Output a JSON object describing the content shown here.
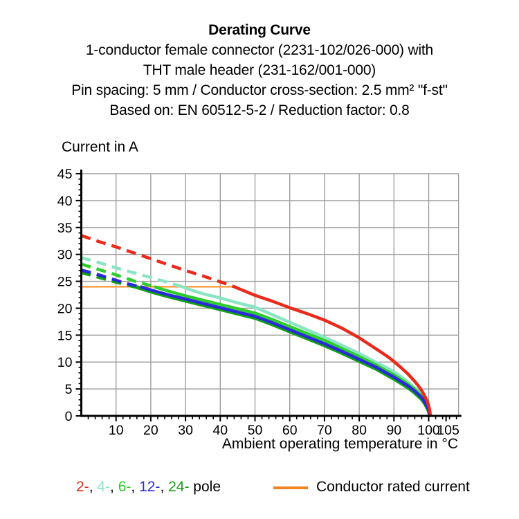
{
  "title": {
    "line1": "Derating Curve",
    "line2": "1-conductor female connector (2231-102/026-000) with",
    "line3": "THT male header (231-162/001-000)",
    "line4": "Pin spacing: 5 mm / Conductor cross-section: 2.5 mm² \"f-st\"",
    "line5": "Based on: EN 60512-5-2 / Reduction factor: 0.8"
  },
  "legend": {
    "poles": [
      {
        "label": "2-",
        "color": "#ea2a1a"
      },
      {
        "label": "4-",
        "color": "#8be4c4"
      },
      {
        "label": "6-",
        "color": "#2ccd2c"
      },
      {
        "label": "12-",
        "color": "#2b2ad8"
      },
      {
        "label": "24-",
        "color": "#15a115"
      }
    ],
    "separator": ", ",
    "suffix": " pole",
    "rated": {
      "label": "Conductor rated current",
      "swatch_color": "#f08421"
    }
  },
  "chart_data": {
    "type": "line",
    "title": "Derating Curve",
    "xlabel": "Ambient operating temperature in °C",
    "ylabel": "Current in A",
    "xlim": [
      0,
      108.6
    ],
    "ylim": [
      0,
      45
    ],
    "grid": true,
    "grid_color": "#9e9e9e",
    "axis_color": "#000000",
    "x_gridlines": [
      10,
      20,
      30,
      40,
      50,
      60,
      70,
      80,
      90,
      100
    ],
    "x_major_ticks": [
      10,
      20,
      30,
      40,
      50,
      60,
      70,
      80,
      90,
      100,
      105
    ],
    "x_minor_step": 2,
    "y_major_ticks": [
      0,
      5,
      10,
      15,
      20,
      25,
      30,
      35,
      40,
      45
    ],
    "y_minor_step": 1,
    "rated_current_line": {
      "y": 24,
      "x_start": 0,
      "x_end": 45,
      "color": "#ffa54d",
      "label": "Conductor rated current"
    },
    "series": [
      {
        "name": "4-pole",
        "color": "#8be4c4",
        "width": 4.5,
        "solid_from": 29,
        "points": [
          [
            0,
            29.4
          ],
          [
            5,
            28.5
          ],
          [
            10,
            27.5
          ],
          [
            15,
            26.6
          ],
          [
            20,
            25.7
          ],
          [
            25,
            24.8
          ],
          [
            29,
            24.0
          ],
          [
            32,
            23.3
          ],
          [
            35,
            22.7
          ],
          [
            40,
            21.9
          ],
          [
            45,
            21.0
          ],
          [
            50,
            20.2
          ],
          [
            55,
            18.8
          ],
          [
            60,
            17.4
          ],
          [
            65,
            16.0
          ],
          [
            70,
            14.6
          ],
          [
            75,
            13.1
          ],
          [
            80,
            11.6
          ],
          [
            85,
            9.9
          ],
          [
            88,
            8.9
          ],
          [
            90,
            8.2
          ],
          [
            92,
            7.3
          ],
          [
            94,
            6.3
          ],
          [
            96,
            5.2
          ],
          [
            97,
            4.6
          ],
          [
            98,
            3.9
          ],
          [
            99,
            2.9
          ],
          [
            99.5,
            2.2
          ],
          [
            100,
            1.4
          ],
          [
            100.3,
            0.7
          ],
          [
            100.5,
            0
          ]
        ]
      },
      {
        "name": "24-pole",
        "color": "#15a115",
        "width": 5.5,
        "solid_from": 15.5,
        "points": [
          [
            0,
            26.7
          ],
          [
            5,
            25.8
          ],
          [
            10,
            24.9
          ],
          [
            15.5,
            24.0
          ],
          [
            20,
            23.1
          ],
          [
            25,
            22.2
          ],
          [
            30,
            21.4
          ],
          [
            35,
            20.6
          ],
          [
            40,
            19.8
          ],
          [
            45,
            19.0
          ],
          [
            50,
            18.2
          ],
          [
            55,
            17.0
          ],
          [
            60,
            15.7
          ],
          [
            65,
            14.4
          ],
          [
            70,
            13.1
          ],
          [
            75,
            11.7
          ],
          [
            80,
            10.2
          ],
          [
            85,
            8.7
          ],
          [
            88,
            7.6
          ],
          [
            90,
            6.9
          ],
          [
            92,
            6.1
          ],
          [
            94,
            5.3
          ],
          [
            96,
            4.3
          ],
          [
            97,
            3.7
          ],
          [
            98,
            3.1
          ],
          [
            99,
            2.2
          ],
          [
            99.5,
            1.6
          ],
          [
            100,
            0.9
          ],
          [
            100.2,
            0.4
          ],
          [
            100.3,
            0
          ]
        ]
      },
      {
        "name": "6-pole",
        "color": "#2ccd2c",
        "width": 4.5,
        "solid_from": 21,
        "points": [
          [
            0,
            28.2
          ],
          [
            5,
            27.2
          ],
          [
            10,
            26.2
          ],
          [
            15,
            25.1
          ],
          [
            21,
            24.0
          ],
          [
            25,
            23.2
          ],
          [
            30,
            22.3
          ],
          [
            35,
            21.5
          ],
          [
            40,
            20.7
          ],
          [
            45,
            19.9
          ],
          [
            50,
            19.1
          ],
          [
            55,
            17.9
          ],
          [
            60,
            16.6
          ],
          [
            65,
            15.3
          ],
          [
            70,
            14.0
          ],
          [
            75,
            12.5
          ],
          [
            80,
            11.0
          ],
          [
            85,
            9.4
          ],
          [
            88,
            8.3
          ],
          [
            90,
            7.6
          ],
          [
            92,
            6.8
          ],
          [
            94,
            5.9
          ],
          [
            96,
            4.9
          ],
          [
            97,
            4.3
          ],
          [
            98,
            3.6
          ],
          [
            99,
            2.6
          ],
          [
            99.5,
            2.0
          ],
          [
            100,
            1.2
          ],
          [
            100.2,
            0.6
          ],
          [
            100.4,
            0
          ]
        ]
      },
      {
        "name": "12-pole",
        "color": "#2b2ad8",
        "width": 4.5,
        "solid_from": 17,
        "points": [
          [
            0,
            27.1
          ],
          [
            5,
            26.2
          ],
          [
            10,
            25.2
          ],
          [
            13,
            24.6
          ],
          [
            17,
            24.0
          ],
          [
            20,
            23.4
          ],
          [
            25,
            22.5
          ],
          [
            30,
            21.7
          ],
          [
            35,
            20.9
          ],
          [
            40,
            20.1
          ],
          [
            45,
            19.3
          ],
          [
            50,
            18.5
          ],
          [
            55,
            17.3
          ],
          [
            60,
            16.0
          ],
          [
            65,
            14.7
          ],
          [
            70,
            13.4
          ],
          [
            75,
            12.0
          ],
          [
            80,
            10.5
          ],
          [
            85,
            9.0
          ],
          [
            88,
            7.9
          ],
          [
            90,
            7.2
          ],
          [
            92,
            6.4
          ],
          [
            94,
            5.6
          ],
          [
            96,
            4.6
          ],
          [
            97,
            4.0
          ],
          [
            98,
            3.4
          ],
          [
            99,
            2.4
          ],
          [
            99.5,
            1.8
          ],
          [
            100,
            1.1
          ],
          [
            100.2,
            0.5
          ],
          [
            100.4,
            0
          ]
        ]
      },
      {
        "name": "2-pole",
        "color": "#ea2a1a",
        "width": 4.5,
        "solid_from": 44,
        "points": [
          [
            0,
            33.5
          ],
          [
            5,
            32.4
          ],
          [
            10,
            31.4
          ],
          [
            15,
            30.3
          ],
          [
            20,
            29.2
          ],
          [
            25,
            28.1
          ],
          [
            30,
            27.0
          ],
          [
            35,
            26.0
          ],
          [
            40,
            24.9
          ],
          [
            44,
            24.0
          ],
          [
            47,
            23.2
          ],
          [
            50,
            22.4
          ],
          [
            55,
            21.3
          ],
          [
            60,
            20.1
          ],
          [
            65,
            19.0
          ],
          [
            70,
            17.8
          ],
          [
            75,
            16.3
          ],
          [
            80,
            14.5
          ],
          [
            85,
            12.4
          ],
          [
            88,
            11.1
          ],
          [
            90,
            10.1
          ],
          [
            92,
            9.0
          ],
          [
            94,
            7.8
          ],
          [
            96,
            6.4
          ],
          [
            97,
            5.6
          ],
          [
            98,
            4.7
          ],
          [
            99,
            3.5
          ],
          [
            99.5,
            2.8
          ],
          [
            100,
            1.9
          ],
          [
            100.3,
            1.0
          ],
          [
            100.5,
            0
          ]
        ]
      }
    ]
  }
}
